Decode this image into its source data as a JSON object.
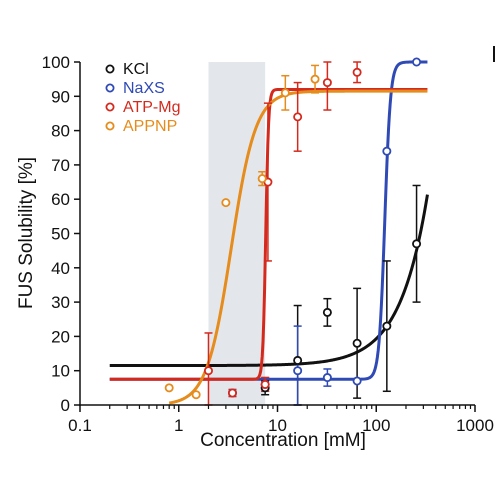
{
  "chart_data": {
    "type": "scatter",
    "xlabel": "Concentration [mM]",
    "ylabel": "FUS Solubility [%]",
    "xscale": "log",
    "xlim": [
      0.1,
      1000
    ],
    "ylim": [
      0,
      100
    ],
    "x_ticks": [
      "0.1",
      "1",
      "10",
      "100",
      "1000"
    ],
    "y_ticks": [
      "0",
      "10",
      "20",
      "30",
      "40",
      "50",
      "60",
      "70",
      "80",
      "90",
      "100"
    ],
    "grid": false,
    "legend_position": "top-left",
    "shaded_region": {
      "x_from": 2,
      "x_to": 7.5,
      "color": "#e3e6ea"
    },
    "series": [
      {
        "name": "KCl",
        "color": "#111111",
        "points": [
          {
            "x": 7.5,
            "y": 5,
            "err": 2
          },
          {
            "x": 16,
            "y": 13,
            "err": 16
          },
          {
            "x": 32,
            "y": 27,
            "err": 4
          },
          {
            "x": 64,
            "y": 18,
            "err": 16
          },
          {
            "x": 128,
            "y": 23,
            "err": 19
          },
          {
            "x": 256,
            "y": 47,
            "err": 17
          }
        ],
        "fit": {
          "model": "exp",
          "base": 11.5,
          "amplitude": 0.145,
          "scale": 300,
          "x_from": 0.2,
          "x_to": 330
        }
      },
      {
        "name": "NaXS",
        "color": "#2f4ab5",
        "points": [
          {
            "x": 3.5,
            "y": 3.5,
            "err": 1
          },
          {
            "x": 7.5,
            "y": 6,
            "err": 2
          },
          {
            "x": 16,
            "y": 10,
            "err": 13
          },
          {
            "x": 32,
            "y": 8,
            "err": 2.5
          },
          {
            "x": 64,
            "y": 7,
            "err": 0
          },
          {
            "x": 128,
            "y": 74,
            "err": 0
          },
          {
            "x": 256,
            "y": 100,
            "err": 0
          }
        ],
        "fit": {
          "model": "hill",
          "bottom": 7.5,
          "top": 100,
          "ec50": 122,
          "hill": 15,
          "x_from": 0.2,
          "x_to": 330
        }
      },
      {
        "name": "ATP-Mg",
        "color": "#d42a1e",
        "points": [
          {
            "x": 2,
            "y": 10,
            "err": 11
          },
          {
            "x": 3.5,
            "y": 3.5,
            "err": 1
          },
          {
            "x": 7.5,
            "y": 6,
            "err": 2
          },
          {
            "x": 8,
            "y": 65,
            "err": 23
          },
          {
            "x": 16,
            "y": 84,
            "err": 10
          },
          {
            "x": 32,
            "y": 94,
            "err": 8
          },
          {
            "x": 64,
            "y": 97,
            "err": 3
          }
        ],
        "fit": {
          "model": "hill",
          "bottom": 7.5,
          "top": 92,
          "ec50": 7.6,
          "hill": 30,
          "x_from": 0.2,
          "x_to": 330
        }
      },
      {
        "name": "APPNP",
        "color": "#e58c1c",
        "points": [
          {
            "x": 0.8,
            "y": 5,
            "err": 0
          },
          {
            "x": 1.5,
            "y": 3,
            "err": 0
          },
          {
            "x": 3,
            "y": 59,
            "err": 0
          },
          {
            "x": 7,
            "y": 66,
            "err": 2
          },
          {
            "x": 12,
            "y": 91,
            "err": 5
          },
          {
            "x": 24,
            "y": 95,
            "err": 4
          }
        ],
        "fit": {
          "model": "hill",
          "bottom": 0,
          "top": 91.5,
          "ec50": 3.4,
          "hill": 3.5,
          "x_from": 0.8,
          "x_to": 330
        }
      }
    ]
  }
}
